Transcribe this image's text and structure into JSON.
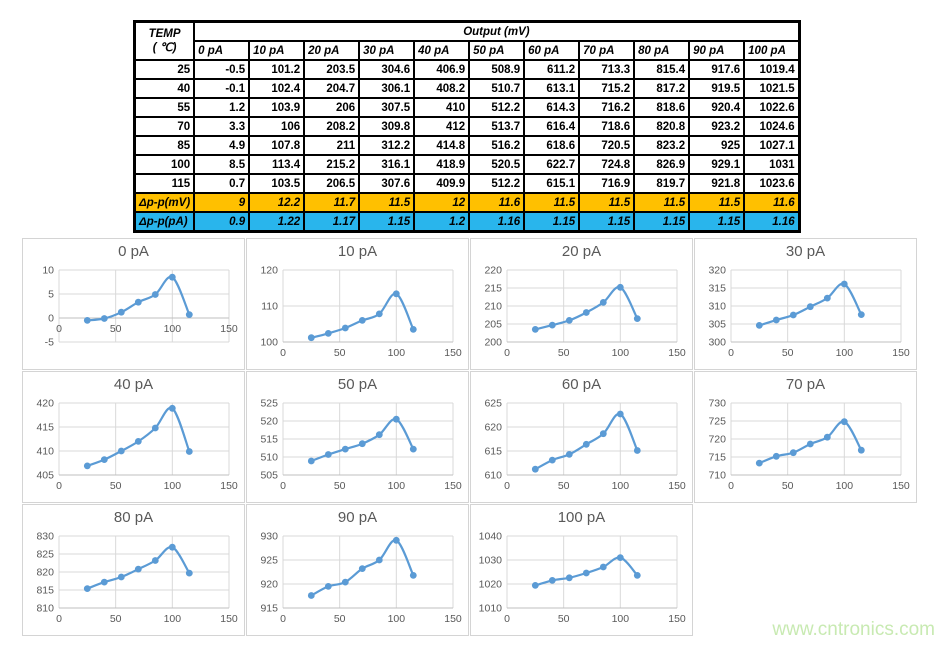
{
  "table": {
    "temp_header_line1": "TEMP",
    "temp_header_line2": "( ℃)",
    "output_header": "Output (mV)",
    "col_headers": [
      "0 pA",
      "10 pA",
      "20 pA",
      "30 pA",
      "40 pA",
      "50 pA",
      "60 pA",
      "70 pA",
      "80 pA",
      "90 pA",
      "100 pA"
    ],
    "temps": [
      25,
      40,
      55,
      70,
      85,
      100,
      115
    ],
    "rows": [
      [
        -0.5,
        101.2,
        203.5,
        304.6,
        406.9,
        508.9,
        611.2,
        713.3,
        815.4,
        917.6,
        1019.4
      ],
      [
        -0.1,
        102.4,
        204.7,
        306.1,
        408.2,
        510.7,
        613.1,
        715.2,
        817.2,
        919.5,
        1021.5
      ],
      [
        1.2,
        103.9,
        206,
        307.5,
        410,
        512.2,
        614.3,
        716.2,
        818.6,
        920.4,
        1022.6
      ],
      [
        3.3,
        106,
        208.2,
        309.8,
        412,
        513.7,
        616.4,
        718.6,
        820.8,
        923.2,
        1024.6
      ],
      [
        4.9,
        107.8,
        211,
        312.2,
        414.8,
        516.2,
        618.6,
        720.5,
        823.2,
        925,
        1027.1
      ],
      [
        8.5,
        113.4,
        215.2,
        316.1,
        418.9,
        520.5,
        622.7,
        724.8,
        826.9,
        929.1,
        1031
      ],
      [
        0.7,
        103.5,
        206.5,
        307.6,
        409.9,
        512.2,
        615.1,
        716.9,
        819.7,
        921.8,
        1023.6
      ]
    ],
    "delta_mv_label": "Δp-p(mV)",
    "delta_mv_values": [
      9,
      12.2,
      11.7,
      11.5,
      12,
      11.6,
      11.5,
      11.5,
      11.5,
      11.5,
      11.6
    ],
    "delta_pa_label": "Δp-p(pA)",
    "delta_pa_values": [
      0.9,
      1.22,
      1.17,
      1.15,
      1.2,
      1.16,
      1.15,
      1.15,
      1.15,
      1.15,
      1.16
    ],
    "colors": {
      "delta_mv_bg": "#FFC000",
      "delta_pa_bg": "#29B5EC"
    }
  },
  "chart_style": {
    "line_color": "#5B9BD5",
    "grid_color": "#D9D9D9",
    "axis_color": "#BFBFBF",
    "text_color": "#595959"
  },
  "chart_data": [
    {
      "type": "line",
      "title": "0 pA",
      "x": [
        25,
        40,
        55,
        70,
        85,
        100,
        115
      ],
      "values": [
        -0.5,
        -0.1,
        1.2,
        3.3,
        4.9,
        8.5,
        0.7
      ],
      "xlim": [
        0,
        150
      ],
      "xstep": 50,
      "ylim": [
        -5,
        10
      ],
      "ystep": 5,
      "xticks": [
        0,
        50,
        100,
        150
      ],
      "yticks": [
        -5,
        0,
        5,
        10
      ]
    },
    {
      "type": "line",
      "title": "10 pA",
      "x": [
        25,
        40,
        55,
        70,
        85,
        100,
        115
      ],
      "values": [
        101.2,
        102.4,
        103.9,
        106,
        107.8,
        113.4,
        103.5
      ],
      "xlim": [
        0,
        150
      ],
      "xstep": 50,
      "ylim": [
        100,
        120
      ],
      "ystep": 10,
      "xticks": [
        0,
        50,
        100,
        150
      ],
      "yticks": [
        100,
        110,
        120
      ]
    },
    {
      "type": "line",
      "title": "20 pA",
      "x": [
        25,
        40,
        55,
        70,
        85,
        100,
        115
      ],
      "values": [
        203.5,
        204.7,
        206,
        208.2,
        211,
        215.2,
        206.5
      ],
      "xlim": [
        0,
        150
      ],
      "xstep": 50,
      "ylim": [
        200,
        220
      ],
      "ystep": 5,
      "xticks": [
        0,
        50,
        100,
        150
      ],
      "yticks": [
        200,
        205,
        210,
        215,
        220
      ]
    },
    {
      "type": "line",
      "title": "30 pA",
      "x": [
        25,
        40,
        55,
        70,
        85,
        100,
        115
      ],
      "values": [
        304.6,
        306.1,
        307.5,
        309.8,
        312.2,
        316.1,
        307.6
      ],
      "xlim": [
        0,
        150
      ],
      "xstep": 50,
      "ylim": [
        300,
        320
      ],
      "ystep": 5,
      "xticks": [
        0,
        50,
        100,
        150
      ],
      "yticks": [
        300,
        305,
        310,
        315,
        320
      ]
    },
    {
      "type": "line",
      "title": "40 pA",
      "x": [
        25,
        40,
        55,
        70,
        85,
        100,
        115
      ],
      "values": [
        406.9,
        408.2,
        410,
        412,
        414.8,
        418.9,
        409.9
      ],
      "xlim": [
        0,
        150
      ],
      "xstep": 50,
      "ylim": [
        405,
        420
      ],
      "ystep": 5,
      "xticks": [
        0,
        50,
        100,
        150
      ],
      "yticks": [
        405,
        410,
        415,
        420
      ]
    },
    {
      "type": "line",
      "title": "50 pA",
      "x": [
        25,
        40,
        55,
        70,
        85,
        100,
        115
      ],
      "values": [
        508.9,
        510.7,
        512.2,
        513.7,
        516.2,
        520.5,
        512.2
      ],
      "xlim": [
        0,
        150
      ],
      "xstep": 50,
      "ylim": [
        505,
        525
      ],
      "ystep": 5,
      "xticks": [
        0,
        50,
        100,
        150
      ],
      "yticks": [
        505,
        510,
        515,
        520,
        525
      ]
    },
    {
      "type": "line",
      "title": "60 pA",
      "x": [
        25,
        40,
        55,
        70,
        85,
        100,
        115
      ],
      "values": [
        611.2,
        613.1,
        614.3,
        616.4,
        618.6,
        622.7,
        615.1
      ],
      "xlim": [
        0,
        150
      ],
      "xstep": 50,
      "ylim": [
        610,
        625
      ],
      "ystep": 5,
      "xticks": [
        0,
        50,
        100,
        150
      ],
      "yticks": [
        610,
        615,
        620,
        625
      ]
    },
    {
      "type": "line",
      "title": "70 pA",
      "x": [
        25,
        40,
        55,
        70,
        85,
        100,
        115
      ],
      "values": [
        713.3,
        715.2,
        716.2,
        718.6,
        720.5,
        724.8,
        716.9
      ],
      "xlim": [
        0,
        150
      ],
      "xstep": 50,
      "ylim": [
        710,
        730
      ],
      "ystep": 5,
      "xticks": [
        0,
        50,
        100,
        150
      ],
      "yticks": [
        710,
        715,
        720,
        725,
        730
      ]
    },
    {
      "type": "line",
      "title": "80 pA",
      "x": [
        25,
        40,
        55,
        70,
        85,
        100,
        115
      ],
      "values": [
        815.4,
        817.2,
        818.6,
        820.8,
        823.2,
        826.9,
        819.7
      ],
      "xlim": [
        0,
        150
      ],
      "xstep": 50,
      "ylim": [
        810,
        830
      ],
      "ystep": 5,
      "xticks": [
        0,
        50,
        100,
        150
      ],
      "yticks": [
        810,
        815,
        820,
        825,
        830
      ]
    },
    {
      "type": "line",
      "title": "90 pA",
      "x": [
        25,
        40,
        55,
        70,
        85,
        100,
        115
      ],
      "values": [
        917.6,
        919.5,
        920.4,
        923.2,
        925,
        929.1,
        921.8
      ],
      "xlim": [
        0,
        150
      ],
      "xstep": 50,
      "ylim": [
        915,
        930
      ],
      "ystep": 5,
      "xticks": [
        0,
        50,
        100,
        150
      ],
      "yticks": [
        915,
        920,
        925,
        930
      ]
    },
    {
      "type": "line",
      "title": "100 pA",
      "x": [
        25,
        40,
        55,
        70,
        85,
        100,
        115
      ],
      "values": [
        1019.4,
        1021.5,
        1022.6,
        1024.6,
        1027.1,
        1031,
        1023.6
      ],
      "xlim": [
        0,
        150
      ],
      "xstep": 50,
      "ylim": [
        1010,
        1040
      ],
      "ystep": 10,
      "xticks": [
        0,
        50,
        100,
        150
      ],
      "yticks": [
        1010,
        1020,
        1030,
        1040
      ]
    }
  ],
  "watermark": {
    "text": "www.cntronics.com",
    "color": "#C8EAB2"
  }
}
